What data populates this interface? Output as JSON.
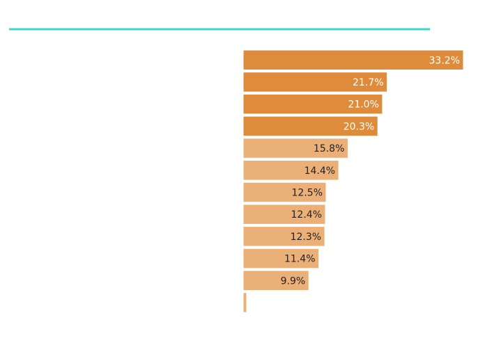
{
  "chart_data": {
    "type": "bar",
    "orientation": "horizontal",
    "title": "",
    "xlabel": "",
    "ylabel": "",
    "xlim": [
      0,
      33.2
    ],
    "grid": false,
    "legend": "none",
    "categories": [
      "",
      "",
      "",
      "",
      "",
      "",
      "",
      "",
      "",
      "",
      "",
      ""
    ],
    "values": [
      33.2,
      21.7,
      21.0,
      20.3,
      15.8,
      14.4,
      12.5,
      12.4,
      12.3,
      11.4,
      9.9,
      0.4
    ],
    "labels": [
      "33.2%",
      "21.7%",
      "21.0%",
      "20.3%",
      "15.8%",
      "14.4%",
      "12.5%",
      "12.4%",
      "12.3%",
      "11.4%",
      "9.9%",
      ""
    ],
    "highlighted": [
      true,
      true,
      true,
      true,
      false,
      false,
      false,
      false,
      false,
      false,
      false,
      false
    ]
  },
  "colors": {
    "accent_line": "#3fd6c8",
    "bar_highlight": "#de8b3b",
    "bar_normal": "#ebb078",
    "label_on_highlight": "#ffffff",
    "label_on_normal": "#222222",
    "bar_outline": "#ffffff"
  }
}
